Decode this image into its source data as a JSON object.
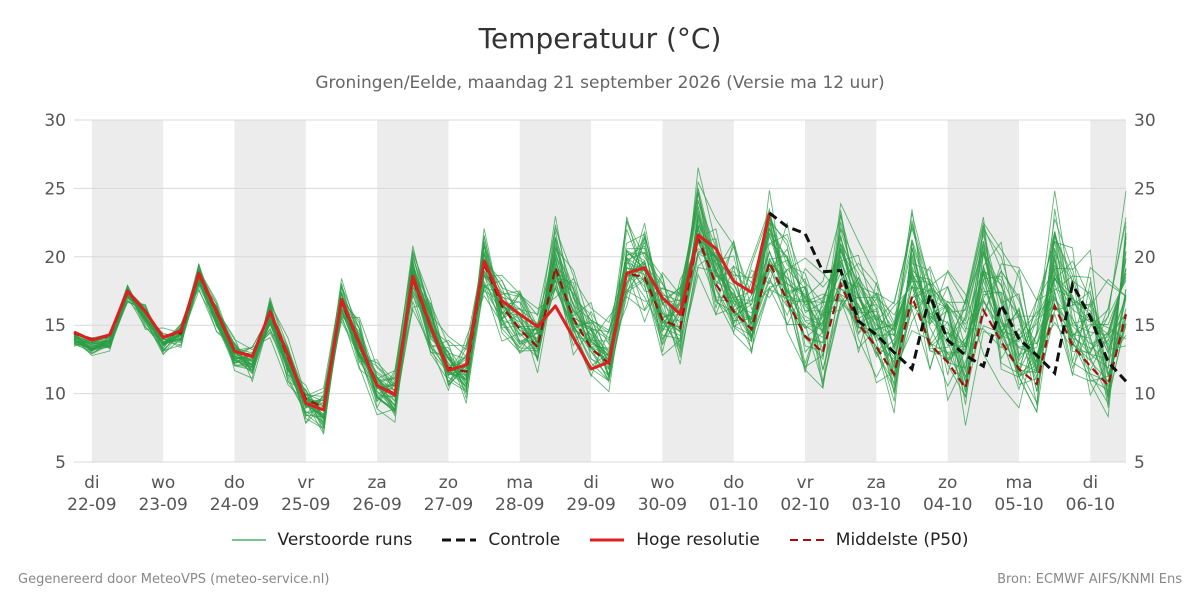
{
  "chart_data": {
    "type": "line",
    "title": "Temperatuur (°C)",
    "subtitle": "Groningen/Eelde, maandag 21 september 2026 (Versie ma 12 uur)",
    "ylim": [
      5,
      30
    ],
    "yticks": [
      5,
      10,
      15,
      20,
      25,
      30
    ],
    "xlim": [
      -0.25,
      14.5
    ],
    "x_labels": [
      {
        "day": "di",
        "date": "22-09"
      },
      {
        "day": "wo",
        "date": "23-09"
      },
      {
        "day": "do",
        "date": "24-09"
      },
      {
        "day": "vr",
        "date": "25-09"
      },
      {
        "day": "za",
        "date": "26-09"
      },
      {
        "day": "zo",
        "date": "27-09"
      },
      {
        "day": "ma",
        "date": "28-09"
      },
      {
        "day": "di",
        "date": "29-09"
      },
      {
        "day": "wo",
        "date": "30-09"
      },
      {
        "day": "do",
        "date": "01-10"
      },
      {
        "day": "vr",
        "date": "02-10"
      },
      {
        "day": "za",
        "date": "03-10"
      },
      {
        "day": "zo",
        "date": "04-10"
      },
      {
        "day": "ma",
        "date": "05-10"
      },
      {
        "day": "di",
        "date": "06-10"
      }
    ],
    "shaded_days": [
      0,
      2,
      4,
      6,
      8,
      10,
      12,
      14
    ],
    "grid": true,
    "legend_position": "bottom-center",
    "colors": {
      "ensemble": "#2e9e47",
      "control": "#111111",
      "hres": "#dd1f1f",
      "median": "#a30f0f",
      "shade": "#ececec",
      "grid": "#d8d8d8"
    },
    "x": [
      -0.25,
      0.0,
      0.25,
      0.5,
      0.75,
      1.0,
      1.25,
      1.5,
      1.75,
      2.0,
      2.25,
      2.5,
      2.75,
      3.0,
      3.25,
      3.5,
      3.75,
      4.0,
      4.25,
      4.5,
      4.75,
      5.0,
      5.25,
      5.5,
      5.75,
      6.0,
      6.25,
      6.5,
      6.75,
      7.0,
      7.25,
      7.5,
      7.75,
      8.0,
      8.25,
      8.5,
      8.75,
      9.0,
      9.25,
      9.5,
      9.75,
      10.0,
      10.25,
      10.5,
      10.75,
      11.0,
      11.25,
      11.5,
      11.75,
      12.0,
      12.25,
      12.5,
      12.75,
      13.0,
      13.25,
      13.5,
      13.75,
      14.0,
      14.25,
      14.5
    ],
    "series": [
      {
        "name": "Hoge resolutie",
        "role": "hres",
        "values": [
          14.5,
          13.9,
          14.3,
          17.5,
          16.0,
          14.1,
          14.6,
          18.8,
          16.0,
          13.1,
          12.7,
          16.0,
          12.8,
          9.3,
          8.8,
          16.9,
          13.7,
          10.6,
          9.9,
          18.6,
          14.9,
          11.7,
          12.1,
          19.7,
          16.8,
          15.8,
          14.9,
          16.4,
          14.1,
          11.8,
          12.3,
          18.8,
          19.2,
          17.0,
          15.8,
          21.6,
          20.6,
          18.2,
          17.4,
          23.2,
          null,
          null,
          null,
          null,
          null,
          null,
          null,
          null,
          null,
          null,
          null,
          null,
          null,
          null,
          null,
          null,
          null,
          null,
          null,
          null
        ]
      },
      {
        "name": "Controle",
        "role": "control",
        "values": [
          null,
          null,
          null,
          null,
          null,
          null,
          null,
          null,
          null,
          null,
          null,
          null,
          null,
          null,
          null,
          null,
          null,
          null,
          null,
          null,
          null,
          null,
          null,
          null,
          null,
          null,
          null,
          null,
          null,
          null,
          null,
          null,
          null,
          null,
          null,
          null,
          null,
          null,
          null,
          23.2,
          22.2,
          21.7,
          18.9,
          19.0,
          15.3,
          14.3,
          13.0,
          11.8,
          17.2,
          13.9,
          12.8,
          12.0,
          16.5,
          14.0,
          12.8,
          11.5,
          18.0,
          15.6,
          12.3,
          10.9
        ]
      },
      {
        "name": "Middelste (P50)",
        "role": "median",
        "values": [
          14.4,
          14.0,
          14.2,
          17.4,
          16.0,
          14.2,
          14.4,
          18.7,
          15.9,
          13.1,
          12.8,
          15.9,
          12.6,
          9.6,
          9.0,
          16.7,
          13.6,
          10.6,
          10.0,
          18.4,
          14.8,
          11.9,
          11.6,
          19.5,
          16.4,
          14.7,
          13.4,
          19.2,
          15.5,
          13.3,
          12.2,
          18.8,
          18.5,
          15.4,
          14.8,
          21.4,
          18.0,
          16.0,
          14.7,
          19.6,
          16.8,
          14.2,
          13.0,
          18.0,
          15.1,
          13.4,
          11.4,
          17.1,
          13.6,
          12.3,
          10.4,
          16.1,
          13.8,
          11.8,
          10.7,
          16.4,
          13.5,
          12.0,
          10.6,
          15.8
        ]
      },
      {
        "name": "Verstoorde runs",
        "role": "ensemble",
        "values": [
          14.9,
          14.3,
          14.7,
          18.2,
          16.6,
          14.7,
          15.1,
          19.5,
          16.6,
          13.6,
          13.3,
          16.6,
          13.2,
          10.3,
          9.7,
          17.7,
          14.3,
          11.4,
          10.8,
          19.4,
          15.7,
          12.8,
          12.4,
          20.6,
          17.4,
          15.9,
          14.6,
          20.5,
          16.7,
          14.6,
          13.5,
          20.3,
          19.9,
          17.0,
          16.4,
          23.4,
          19.9,
          18.0,
          16.7,
          22.0,
          19.2,
          16.6,
          15.4,
          20.6,
          17.7,
          16.0,
          14.0,
          20.0,
          16.5,
          15.2,
          13.4,
          19.2,
          16.9,
          14.9,
          13.9,
          19.6,
          16.7,
          15.3,
          13.9,
          19.4
        ]
      }
    ]
  },
  "legend": {
    "ensemble": "Verstoorde runs",
    "control": "Controle",
    "hres": "Hoge resolutie",
    "median": "Middelste (P50)"
  },
  "footer": {
    "left": "Gegenereerd door MeteoVPS (meteo-service.nl)",
    "right": "Bron: ECMWF AIFS/KNMI Ens"
  }
}
